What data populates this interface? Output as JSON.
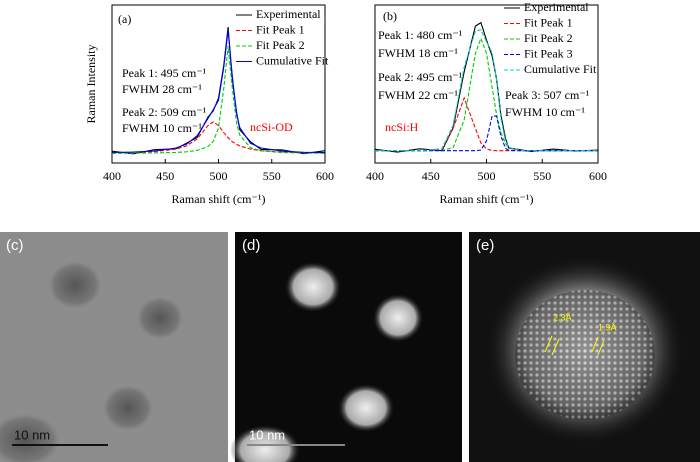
{
  "chart_data": [
    {
      "type": "line",
      "panel_label": "(a)",
      "xlabel": "Raman shift (cm⁻¹)",
      "ylabel": "Raman Intensity",
      "x": [
        400,
        420,
        440,
        460,
        470,
        480,
        490,
        495,
        500,
        505,
        509,
        513,
        517,
        520,
        530,
        540,
        560,
        580,
        600
      ],
      "series": [
        {
          "name": "Experimental",
          "color": "#000000",
          "style": "solid",
          "values": [
            7.5,
            5.8,
            8.4,
            9,
            12.6,
            16.2,
            29,
            33,
            41,
            62,
            86,
            53,
            32,
            21,
            13.4,
            8.6,
            8.3,
            5.9,
            7.8
          ]
        },
        {
          "name": "Fit Peak 1",
          "color": "#ff0000",
          "style": "dashed",
          "values": [
            6.4,
            6.7,
            7.2,
            8.8,
            10.8,
            15.3,
            23.7,
            26,
            23.7,
            19.2,
            16,
            13.5,
            11.8,
            10.8,
            8.8,
            7.8,
            6.9,
            6.5,
            6.4
          ]
        },
        {
          "name": "Fit Peak 2",
          "color": "#00cc00",
          "style": "dashed",
          "values": [
            6.1,
            6.2,
            6.4,
            6.7,
            7.1,
            8,
            10.4,
            13.7,
            22,
            47.5,
            74,
            47.5,
            25.1,
            17.6,
            9.7,
            7.7,
            6.6,
            6.3,
            6.2
          ]
        },
        {
          "name": "Cumulative Fit",
          "color": "#0000ff",
          "style": "solid",
          "values": [
            6.6,
            6.9,
            7.6,
            9.5,
            11.9,
            17.3,
            28.1,
            33.7,
            39.7,
            60.7,
            84,
            55,
            30.9,
            22.4,
            12.5,
            9.5,
            7.5,
            6.8,
            6.6
          ]
        }
      ],
      "xlim": [
        400,
        600
      ],
      "ylim": [
        0,
        100
      ],
      "xticks": [
        400,
        450,
        500,
        550,
        600
      ],
      "legend": "upper right",
      "annotations": [
        {
          "text": "Peak 1:  495 cm⁻¹"
        },
        {
          "text": "FWHM 28 cm⁻¹"
        },
        {
          "text": "Peak 2:  509 cm⁻¹"
        },
        {
          "text": "FWHM 10 cm⁻¹"
        },
        {
          "text": "ncSi-OD",
          "color": "#ff0000"
        }
      ]
    },
    {
      "type": "line",
      "panel_label": "(b)",
      "xlabel": "Raman shift (cm⁻¹)",
      "x": [
        400,
        420,
        440,
        460,
        470,
        480,
        490,
        495,
        500,
        505,
        509,
        513,
        517,
        520,
        530,
        540,
        560,
        580,
        600
      ],
      "series": [
        {
          "name": "Experimental",
          "color": "#000000",
          "style": "solid",
          "values": [
            7.8,
            6.2,
            8.1,
            7,
            20,
            52,
            78,
            80,
            70,
            61,
            48,
            27,
            14,
            8.5,
            7.6,
            6.5,
            7.9,
            6.8,
            7.4
          ]
        },
        {
          "name": "Fit Peak 1",
          "color": "#ff0000",
          "style": "dashed",
          "values": [
            7,
            7,
            7,
            8,
            19.7,
            37,
            19.7,
            11.4,
            8,
            7.1,
            7,
            7,
            7,
            7,
            7,
            7,
            7,
            7,
            7
          ]
        },
        {
          "name": "Fit Peak 2",
          "color": "#00cc00",
          "style": "dashed",
          "values": [
            7,
            7,
            7,
            7.1,
            8.8,
            24.6,
            62.5,
            71,
            62.5,
            43.1,
            27.9,
            17,
            11,
            8.8,
            7.1,
            7,
            7,
            7,
            7
          ]
        },
        {
          "name": "Fit Peak 3",
          "color": "#0000ff",
          "style": "dashed",
          "values": [
            7,
            7,
            7,
            7,
            7,
            7,
            7,
            7.4,
            12.6,
            26.7,
            26.7,
            15.1,
            8.4,
            7.2,
            7,
            7,
            7,
            7,
            7
          ]
        },
        {
          "name": "Cumulative Fit",
          "color": "#00cccc",
          "style": "dashed",
          "values": [
            7,
            7,
            7,
            8.1,
            21.5,
            54.6,
            75.2,
            75.8,
            69.1,
            62.9,
            47.6,
            25.1,
            12.4,
            9,
            7.1,
            7,
            7,
            7,
            7
          ]
        }
      ],
      "xlim": [
        400,
        600
      ],
      "ylim": [
        0,
        90
      ],
      "xticks": [
        400,
        450,
        500,
        550,
        600
      ],
      "legend": "upper right",
      "annotations": [
        {
          "text": "Peak 1:  480 cm⁻¹"
        },
        {
          "text": "FWHM 18 cm⁻¹"
        },
        {
          "text": "Peak 2:  495 cm⁻¹"
        },
        {
          "text": "FWHM 22 cm⁻¹"
        },
        {
          "text": "Peak 3:  507 cm⁻¹"
        },
        {
          "text": "FWHM 10 cm⁻¹"
        },
        {
          "text": "ncSi:H",
          "color": "#ff0000"
        }
      ]
    }
  ],
  "images": [
    {
      "label": "(c)",
      "scale": "10 nm"
    },
    {
      "label": "(d)",
      "scale": "10 nm"
    },
    {
      "label": "(e)",
      "lattice": [
        "2.3Å",
        "1.9Å"
      ]
    }
  ]
}
